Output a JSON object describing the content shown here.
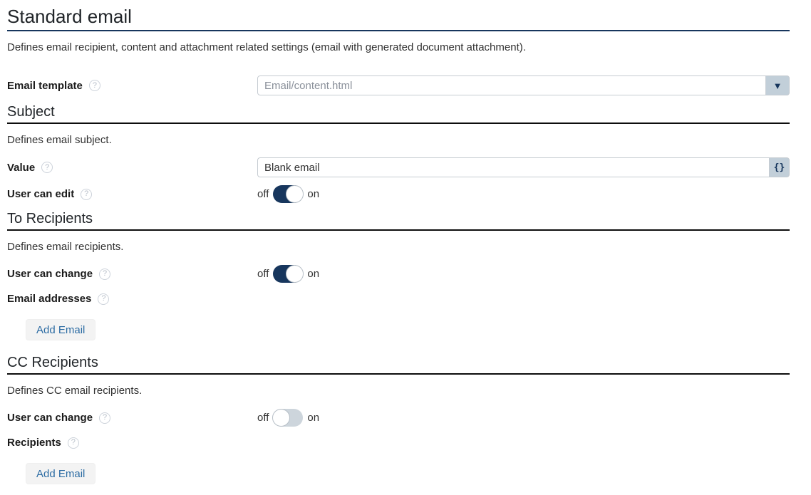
{
  "page": {
    "title": "Standard email",
    "description": "Defines email recipient, content and attachment related settings (email with generated document attachment)."
  },
  "icons": {
    "help": "?",
    "dropdown_arrow": "▼"
  },
  "toggle_labels": {
    "off": "off",
    "on": "on"
  },
  "email_template": {
    "label": "Email template",
    "value": "Email/content.html"
  },
  "subject": {
    "heading": "Subject",
    "description": "Defines email subject.",
    "value_label": "Value",
    "value": "Blank email",
    "insert_button": "{}",
    "user_can_edit_label": "User can edit",
    "user_can_edit_state": "on"
  },
  "to_recipients": {
    "heading": "To Recipients",
    "description": "Defines email recipients.",
    "user_can_change_label": "User can change",
    "user_can_change_state": "on",
    "email_addresses_label": "Email addresses",
    "add_email_label": "Add Email"
  },
  "cc_recipients": {
    "heading": "CC Recipients",
    "description": "Defines CC email recipients.",
    "user_can_change_label": "User can change",
    "user_can_change_state": "off",
    "recipients_label": "Recipients",
    "add_email_label": "Add Email"
  },
  "colors": {
    "accent_navy": "#17365d",
    "control_bg": "#c2cfd9",
    "toggle_off_track": "#cdd5dc",
    "add_button_text": "#2e6da4"
  }
}
